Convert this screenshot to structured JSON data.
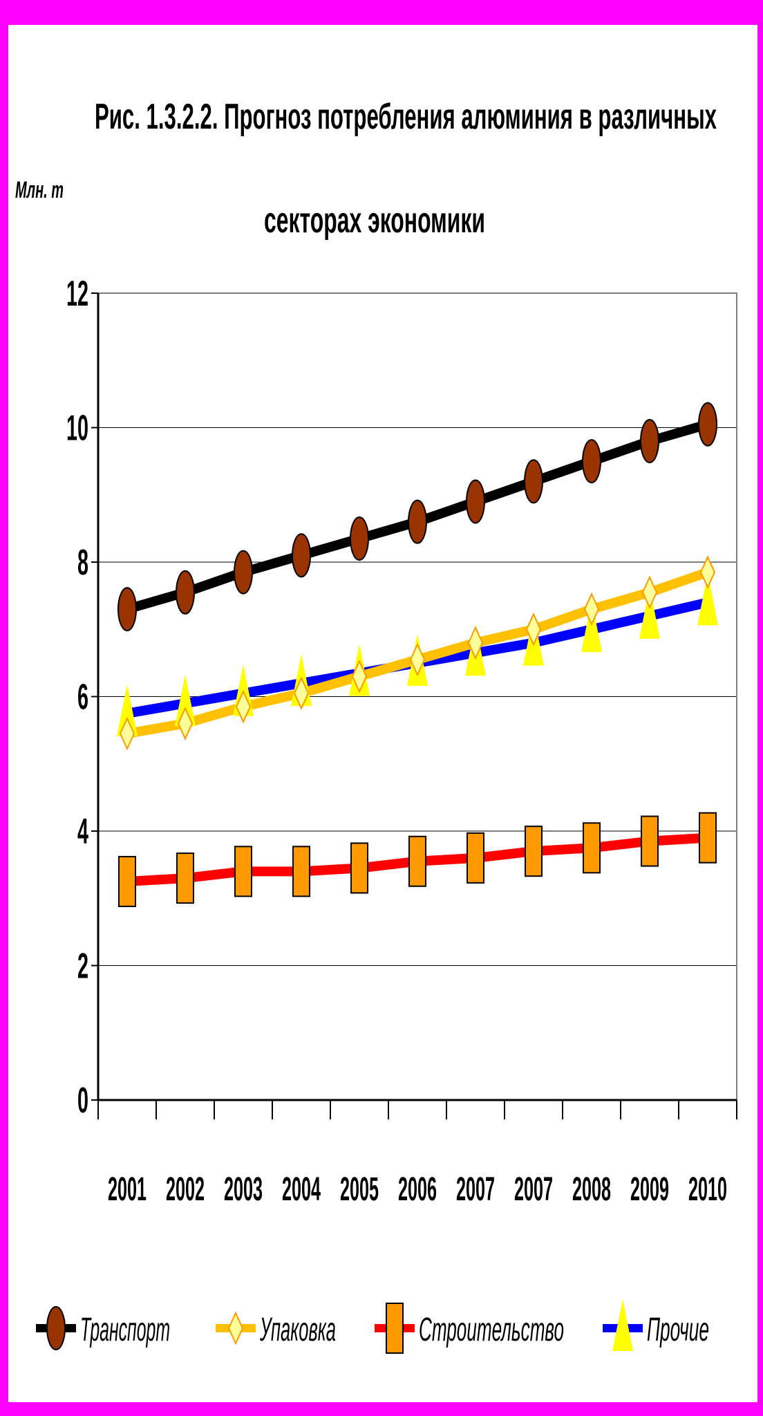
{
  "chart_data": {
    "type": "line",
    "title_line1": "Рис. 1.3.2.2. Прогноз потребления алюминия в различных",
    "title_line2": "секторах экономики",
    "ylabel": "Млн. т",
    "xlabel": "",
    "ylim": [
      0,
      12
    ],
    "yticks": [
      0,
      2,
      4,
      6,
      8,
      10,
      12
    ],
    "categories": [
      "2001",
      "2002",
      "2003",
      "2004",
      "2005",
      "2006",
      "2007",
      "2007",
      "2008",
      "2009",
      "2010"
    ],
    "grid": true,
    "legend_position": "bottom",
    "series": [
      {
        "name": "Транспорт",
        "color": "#000000",
        "marker": "circle",
        "marker_color": "#993300",
        "values": [
          7.3,
          7.55,
          7.85,
          8.1,
          8.35,
          8.6,
          8.9,
          9.2,
          9.5,
          9.8,
          10.05
        ]
      },
      {
        "name": "Упаковка",
        "color": "#ffc000",
        "marker": "diamond",
        "marker_color": "#ffff99",
        "values": [
          5.45,
          5.6,
          5.85,
          6.05,
          6.3,
          6.55,
          6.8,
          7.0,
          7.3,
          7.55,
          7.85
        ]
      },
      {
        "name": "Строительство",
        "color": "#ff0000",
        "marker": "square",
        "marker_color": "#ff9900",
        "values": [
          3.25,
          3.3,
          3.4,
          3.4,
          3.45,
          3.55,
          3.6,
          3.7,
          3.75,
          3.85,
          3.9
        ]
      },
      {
        "name": "Прочие",
        "color": "#0000ff",
        "marker": "triangle",
        "marker_color": "#ffff00",
        "values": [
          5.75,
          5.9,
          6.05,
          6.2,
          6.35,
          6.5,
          6.65,
          6.8,
          7.0,
          7.2,
          7.4
        ]
      }
    ]
  }
}
